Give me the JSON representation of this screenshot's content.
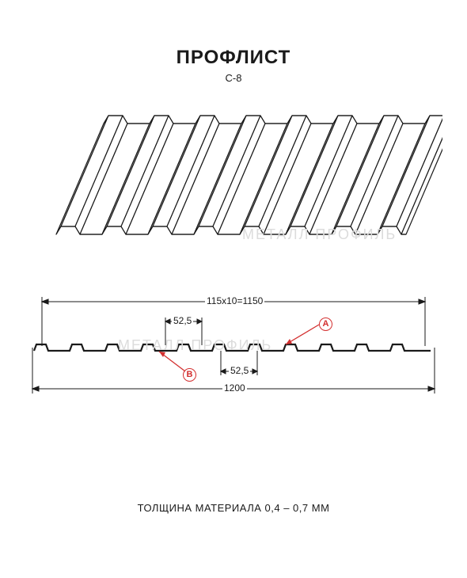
{
  "title": "ПРОФЛИСТ",
  "subtitle": "C-8",
  "thickness_label": "ТОЛЩИНА МАТЕРИАЛА 0,4 – 0,7 ММ",
  "watermark_text": "МЕТАЛЛ ПРОФИЛЬ",
  "dimensions": {
    "top_width": "115х10=1150",
    "rib_up": "52,5",
    "rib_down": "52,5",
    "bottom_width": "1200"
  },
  "callouts": {
    "a": "A",
    "b": "B"
  },
  "colors": {
    "line": "#1a1a1a",
    "callout_red": "#d32f2f",
    "watermark": "#dcdcdc",
    "background": "#ffffff"
  },
  "perspective": {
    "ribs": 8,
    "skew_dx": 60,
    "depth_dy": 140,
    "rib_width": 30,
    "gap_width": 28,
    "rib_height": 10
  },
  "profile": {
    "teeth": 11,
    "tooth_up": 18,
    "tooth_down": 27,
    "height": 8
  }
}
